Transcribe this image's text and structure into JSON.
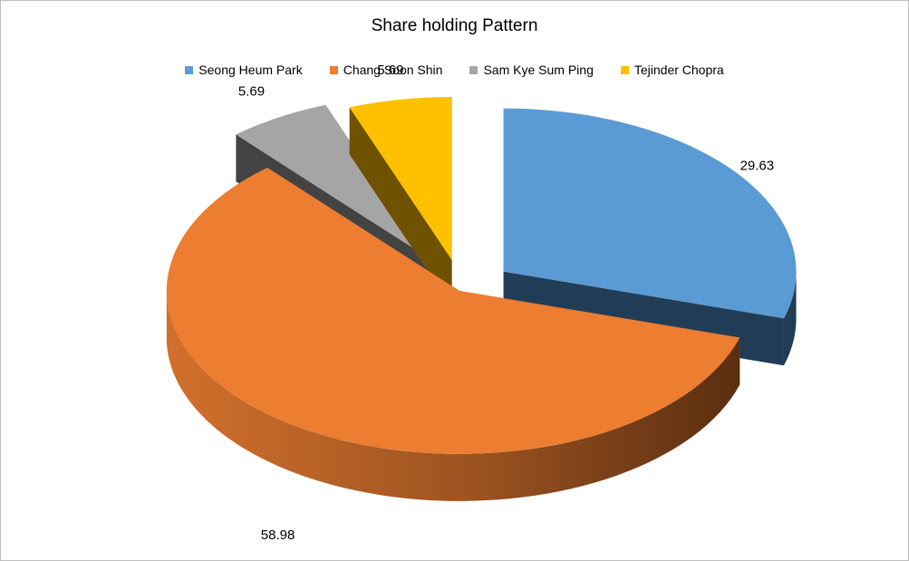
{
  "chart_data": {
    "type": "pie",
    "title": "Share holding Pattern",
    "legend_position": "top",
    "style": "3d-exploded",
    "slices": [
      {
        "name": "Seong Heum Park",
        "value": 29.63,
        "label": "29.63",
        "color": "#5B9BD5",
        "side_color": "#213C57"
      },
      {
        "name": "Chang Soon Shin",
        "value": 58.98,
        "label": "58.98",
        "color": "#ED7D31",
        "side_color": "#8A4A1E"
      },
      {
        "name": "Sam Kye Sum Ping",
        "value": 5.69,
        "label": "5.69",
        "color": "#A5A5A5",
        "side_color": "#434343"
      },
      {
        "name": "Tejinder Chopra",
        "value": 5.69,
        "label": "5.69",
        "color": "#FFC000",
        "side_color": "#6E5200"
      }
    ]
  }
}
